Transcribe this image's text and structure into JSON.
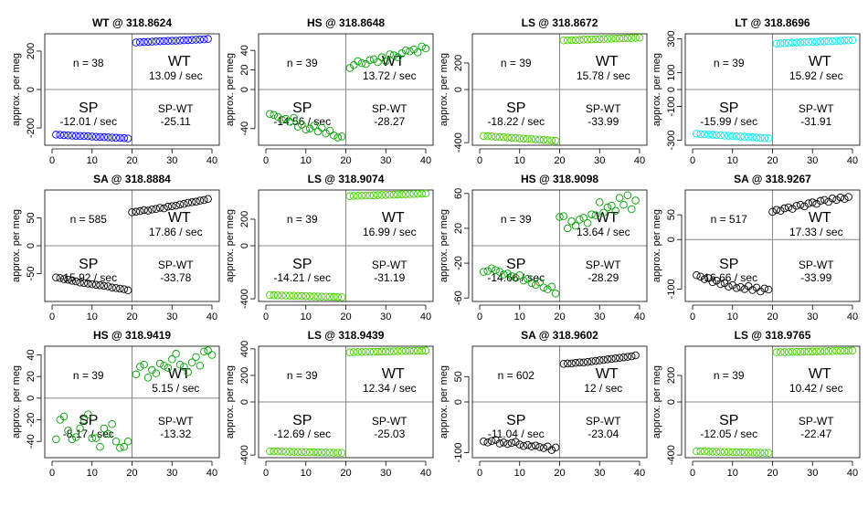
{
  "chart_data": [
    {
      "type": "scatter",
      "title": "WT @ 318.8624",
      "ylabel": "approx. per meg",
      "color": "#0000ff",
      "xlim": [
        0,
        40
      ],
      "ylim": [
        -290,
        290
      ],
      "yticks": [
        -200,
        0,
        200
      ],
      "xticks": [
        0,
        10,
        20,
        30,
        40
      ],
      "n_label": "n = 38",
      "wt_label": "WT",
      "wt_rate": "13.09 / sec",
      "sp_label": "SP",
      "sp_rate": "-12.01 / sec",
      "diff_label": "SP-WT",
      "diff_value": "-25.11",
      "sp_x": [
        1,
        2,
        3,
        4,
        5,
        6,
        7,
        8,
        9,
        10,
        11,
        12,
        13,
        14,
        15,
        16,
        17,
        18,
        19
      ],
      "sp_y": [
        -235,
        -236,
        -238,
        -239,
        -240,
        -241,
        -242,
        -242,
        -243,
        -245,
        -246,
        -247,
        -248,
        -249,
        -250,
        -251,
        -252,
        -253,
        -255
      ],
      "wt_x": [
        21,
        22,
        23,
        24,
        25,
        26,
        27,
        28,
        29,
        30,
        31,
        32,
        33,
        34,
        35,
        36,
        37,
        38,
        39
      ],
      "wt_y": [
        245,
        246,
        247,
        248,
        249,
        250,
        251,
        252,
        253,
        254,
        254,
        255,
        256,
        257,
        258,
        259,
        260,
        261,
        263
      ]
    },
    {
      "type": "scatter",
      "title": "HS @ 318.8648",
      "ylabel": "approx. per meg",
      "color": "#00a000",
      "xlim": [
        0,
        40
      ],
      "ylim": [
        -57,
        57
      ],
      "yticks": [
        -40,
        0,
        20,
        40
      ],
      "xticks": [
        0,
        10,
        20,
        30,
        40
      ],
      "n_label": "n = 39",
      "wt_label": "WT",
      "wt_rate": "13.72 / sec",
      "sp_label": "SP",
      "sp_rate": "-14.56 / sec",
      "diff_label": "SP-WT",
      "diff_value": "-28.27",
      "sp_x": [
        1,
        2,
        3,
        4,
        5,
        6,
        7,
        8,
        9,
        10,
        11,
        12,
        13,
        14,
        15,
        16,
        17,
        18,
        19
      ],
      "sp_y": [
        -25,
        -26,
        -28,
        -31,
        -30,
        -33,
        -29,
        -38,
        -36,
        -41,
        -40,
        -37,
        -43,
        -39,
        -45,
        -42,
        -47,
        -49,
        -48
      ],
      "wt_x": [
        21,
        22,
        23,
        24,
        25,
        26,
        27,
        28,
        29,
        30,
        31,
        32,
        33,
        34,
        35,
        36,
        37,
        38,
        39,
        40
      ],
      "wt_y": [
        22,
        25,
        29,
        27,
        26,
        30,
        31,
        28,
        33,
        29,
        36,
        35,
        33,
        37,
        40,
        39,
        41,
        38,
        44,
        42
      ]
    },
    {
      "type": "scatter",
      "title": "LS @ 318.8672",
      "ylabel": "approx. per meg",
      "color": "#44cc00",
      "xlim": [
        0,
        40
      ],
      "ylim": [
        -420,
        420
      ],
      "yticks": [
        -400,
        0,
        200
      ],
      "xticks": [
        0,
        10,
        20,
        30,
        40
      ],
      "n_label": "n = 39",
      "wt_label": "WT",
      "wt_rate": "15.78 / sec",
      "sp_label": "SP",
      "sp_rate": "-18.22 / sec",
      "diff_label": "SP-WT",
      "diff_value": "-33.99",
      "sp_x": [
        1,
        2,
        3,
        4,
        5,
        6,
        7,
        8,
        9,
        10,
        11,
        12,
        13,
        14,
        15,
        16,
        17,
        18,
        19
      ],
      "sp_y": [
        -350,
        -352,
        -354,
        -356,
        -358,
        -360,
        -362,
        -364,
        -366,
        -368,
        -370,
        -372,
        -374,
        -376,
        -378,
        -380,
        -382,
        -384,
        -386
      ],
      "wt_x": [
        21,
        22,
        23,
        24,
        25,
        26,
        27,
        28,
        29,
        30,
        31,
        32,
        33,
        34,
        35,
        36,
        37,
        38,
        39,
        40
      ],
      "wt_y": [
        370,
        371,
        372,
        373,
        374,
        376,
        377,
        378,
        379,
        380,
        381,
        382,
        383,
        384,
        385,
        386,
        387,
        388,
        389,
        391
      ]
    },
    {
      "type": "scatter",
      "title": "LT @ 318.8696",
      "ylabel": "approx. per meg",
      "color": "#00e5ee",
      "xlim": [
        0,
        40
      ],
      "ylim": [
        -330,
        330
      ],
      "yticks": [
        -300,
        -100,
        0,
        100,
        300
      ],
      "xticks": [
        0,
        10,
        20,
        30,
        40
      ],
      "n_label": "n = 39",
      "wt_label": "WT",
      "wt_rate": "15.92 / sec",
      "sp_label": "SP",
      "sp_rate": "-15.99 / sec",
      "diff_label": "SP-WT",
      "diff_value": "-31.91",
      "sp_x": [
        1,
        2,
        3,
        4,
        5,
        6,
        7,
        8,
        9,
        10,
        11,
        12,
        13,
        14,
        15,
        16,
        17,
        18,
        19
      ],
      "sp_y": [
        -262,
        -264,
        -265,
        -267,
        -268,
        -270,
        -271,
        -273,
        -274,
        -276,
        -277,
        -279,
        -280,
        -282,
        -283,
        -285,
        -286,
        -288,
        -289
      ],
      "wt_x": [
        21,
        22,
        23,
        24,
        25,
        26,
        27,
        28,
        29,
        30,
        31,
        32,
        33,
        34,
        35,
        36,
        37,
        38,
        39,
        40
      ],
      "wt_y": [
        272,
        273,
        274,
        276,
        277,
        278,
        279,
        280,
        281,
        282,
        283,
        284,
        285,
        286,
        287,
        288,
        289,
        290,
        291,
        292
      ]
    },
    {
      "type": "scatter",
      "title": "SA @ 318.8884",
      "ylabel": "approx. per meg",
      "color": "#000000",
      "xlim": [
        0,
        40
      ],
      "ylim": [
        -100,
        100
      ],
      "yticks": [
        -50,
        0,
        50
      ],
      "xticks": [
        0,
        10,
        20,
        30,
        40
      ],
      "n_label": "n = 585",
      "wt_label": "WT",
      "wt_rate": "17.86 / sec",
      "sp_label": "SP",
      "sp_rate": "-15.92 / sec",
      "diff_label": "SP-WT",
      "diff_value": "-33.78",
      "sp_x": [
        1,
        2,
        3,
        4,
        5,
        6,
        7,
        8,
        9,
        10,
        11,
        12,
        13,
        14,
        15,
        16,
        17,
        18,
        19
      ],
      "sp_y": [
        -57,
        -58,
        -60,
        -61,
        -63,
        -64,
        -66,
        -67,
        -68,
        -69,
        -70,
        -71,
        -72,
        -73,
        -75,
        -76,
        -77,
        -78,
        -80
      ],
      "wt_x": [
        20,
        21,
        22,
        23,
        24,
        25,
        26,
        27,
        28,
        29,
        30,
        31,
        32,
        33,
        34,
        35,
        36,
        37,
        38,
        39
      ],
      "wt_y": [
        60,
        61,
        62,
        64,
        63,
        65,
        66,
        68,
        67,
        70,
        71,
        72,
        74,
        75,
        77,
        78,
        79,
        81,
        82,
        84
      ]
    },
    {
      "type": "scatter",
      "title": "LS @ 318.9074",
      "ylabel": "approx. per meg",
      "color": "#44cc00",
      "xlim": [
        0,
        40
      ],
      "ylim": [
        -420,
        420
      ],
      "yticks": [
        -400,
        0,
        200
      ],
      "xticks": [
        0,
        10,
        20,
        30,
        40
      ],
      "n_label": "n = 39",
      "wt_label": "WT",
      "wt_rate": "16.99 / sec",
      "sp_label": "SP",
      "sp_rate": "-14.21 / sec",
      "diff_label": "SP-WT",
      "diff_value": "-31.19",
      "sp_x": [
        1,
        2,
        3,
        4,
        5,
        6,
        7,
        8,
        9,
        10,
        11,
        12,
        13,
        14,
        15,
        16,
        17,
        18,
        19
      ],
      "sp_y": [
        -372,
        -373,
        -374,
        -375,
        -376,
        -377,
        -377,
        -378,
        -379,
        -380,
        -381,
        -382,
        -383,
        -384,
        -384,
        -385,
        -386,
        -387,
        -388
      ],
      "wt_x": [
        21,
        22,
        23,
        24,
        25,
        26,
        27,
        28,
        29,
        30,
        31,
        32,
        33,
        34,
        35,
        36,
        37,
        38,
        39,
        40
      ],
      "wt_y": [
        374,
        375,
        376,
        377,
        378,
        379,
        380,
        381,
        382,
        383,
        384,
        385,
        386,
        387,
        388,
        389,
        390,
        391,
        392,
        393
      ]
    },
    {
      "type": "scatter",
      "title": "HS @ 318.9098",
      "ylabel": "approx. per meg",
      "color": "#00a000",
      "xlim": [
        0,
        40
      ],
      "ylim": [
        -64,
        64
      ],
      "yticks": [
        -60,
        -20,
        20,
        60
      ],
      "xticks": [
        0,
        10,
        20,
        30,
        40
      ],
      "n_label": "n = 39",
      "wt_label": "WT",
      "wt_rate": "13.64 / sec",
      "sp_label": "SP",
      "sp_rate": "-14.66 / sec",
      "diff_label": "SP-WT",
      "diff_value": "-28.29",
      "sp_x": [
        1,
        2,
        3,
        4,
        5,
        6,
        7,
        8,
        9,
        10,
        11,
        12,
        13,
        14,
        15,
        16,
        17,
        18,
        19
      ],
      "sp_y": [
        -30,
        -29,
        -26,
        -28,
        -30,
        -33,
        -32,
        -35,
        -37,
        -34,
        -40,
        -38,
        -43,
        -45,
        -42,
        -48,
        -50,
        -47,
        -55
      ],
      "wt_x": [
        20,
        21,
        22,
        23,
        24,
        25,
        26,
        27,
        28,
        29,
        30,
        31,
        32,
        33,
        34,
        35,
        36,
        37,
        38,
        39
      ],
      "wt_y": [
        33,
        34,
        20,
        28,
        23,
        30,
        32,
        26,
        36,
        35,
        50,
        38,
        44,
        46,
        40,
        55,
        47,
        58,
        42,
        52
      ]
    },
    {
      "type": "scatter",
      "title": "SA @ 318.9267",
      "ylabel": "approx. per meg",
      "color": "#000000",
      "xlim": [
        0,
        40
      ],
      "ylim": [
        -125,
        100
      ],
      "yticks": [
        -100,
        0,
        50
      ],
      "xticks": [
        0,
        10,
        20,
        30,
        40
      ],
      "n_label": "n = 517",
      "wt_label": "WT",
      "wt_rate": "17.33 / sec",
      "sp_label": "SP",
      "sp_rate": "-16.66 / sec",
      "diff_label": "SP-WT",
      "diff_value": "-33.99",
      "sp_x": [
        1,
        2,
        3,
        4,
        5,
        6,
        7,
        8,
        9,
        10,
        11,
        12,
        13,
        14,
        15,
        16,
        17,
        18,
        19
      ],
      "sp_y": [
        -72,
        -75,
        -80,
        -78,
        -86,
        -83,
        -90,
        -88,
        -95,
        -92,
        -98,
        -96,
        -100,
        -94,
        -102,
        -97,
        -105,
        -99,
        -101
      ],
      "wt_x": [
        20,
        21,
        22,
        23,
        24,
        25,
        26,
        27,
        28,
        29,
        30,
        31,
        32,
        33,
        34,
        35,
        36,
        37,
        38,
        39
      ],
      "wt_y": [
        56,
        60,
        58,
        63,
        65,
        62,
        68,
        70,
        67,
        73,
        75,
        72,
        78,
        80,
        76,
        83,
        80,
        85,
        82,
        86
      ]
    },
    {
      "type": "scatter",
      "title": "HS @ 318.9419",
      "ylabel": "approx. per meg",
      "color": "#00a000",
      "xlim": [
        0,
        40
      ],
      "ylim": [
        -55,
        48
      ],
      "yticks": [
        -40,
        -20,
        0,
        20,
        40
      ],
      "xticks": [
        0,
        10,
        20,
        30,
        40
      ],
      "n_label": "n = 39",
      "wt_label": "WT",
      "wt_rate": "5.15 / sec",
      "sp_label": "SP",
      "sp_rate": "-8.17 / sec",
      "diff_label": "SP-WT",
      "diff_value": "-13.32",
      "sp_x": [
        1,
        2,
        3,
        4,
        5,
        6,
        7,
        8,
        9,
        10,
        11,
        12,
        13,
        14,
        15,
        16,
        17,
        18,
        19
      ],
      "sp_y": [
        -38,
        -20,
        -17,
        -30,
        -38,
        -36,
        -28,
        -20,
        -15,
        -37,
        -37,
        -45,
        -28,
        -33,
        -24,
        -40,
        -46,
        -45,
        -40
      ],
      "wt_x": [
        21,
        22,
        23,
        24,
        25,
        26,
        27,
        28,
        29,
        30,
        31,
        32,
        33,
        34,
        35,
        36,
        37,
        38,
        39,
        40
      ],
      "wt_y": [
        22,
        29,
        31,
        19,
        26,
        23,
        32,
        30,
        28,
        36,
        41,
        31,
        29,
        24,
        33,
        38,
        30,
        43,
        44,
        40
      ]
    },
    {
      "type": "scatter",
      "title": "LS @ 318.9439",
      "ylabel": "approx. per meg",
      "color": "#44cc00",
      "xlim": [
        0,
        40
      ],
      "ylim": [
        -420,
        420
      ],
      "yticks": [
        -400,
        0,
        200,
        400
      ],
      "xticks": [
        0,
        10,
        20,
        30,
        40
      ],
      "n_label": "n = 39",
      "wt_label": "WT",
      "wt_rate": "12.34 / sec",
      "sp_label": "SP",
      "sp_rate": "-12.69 / sec",
      "diff_label": "SP-WT",
      "diff_value": "-25.03",
      "sp_x": [
        1,
        2,
        3,
        4,
        5,
        6,
        7,
        8,
        9,
        10,
        11,
        12,
        13,
        14,
        15,
        16,
        17,
        18,
        19
      ],
      "sp_y": [
        -372,
        -373,
        -373,
        -374,
        -375,
        -375,
        -376,
        -377,
        -377,
        -378,
        -379,
        -379,
        -380,
        -381,
        -381,
        -382,
        -383,
        -383,
        -384
      ],
      "wt_x": [
        21,
        22,
        23,
        24,
        25,
        26,
        27,
        28,
        29,
        30,
        31,
        32,
        33,
        34,
        35,
        36,
        37,
        38,
        39,
        40
      ],
      "wt_y": [
        374,
        375,
        376,
        376,
        377,
        378,
        378,
        379,
        380,
        380,
        381,
        382,
        382,
        383,
        384,
        384,
        385,
        386,
        386,
        387
      ]
    },
    {
      "type": "scatter",
      "title": "SA @ 318.9602",
      "ylabel": "approx. per meg",
      "color": "#000000",
      "xlim": [
        0,
        40
      ],
      "ylim": [
        -110,
        110
      ],
      "yticks": [
        -100,
        0,
        50
      ],
      "xticks": [
        0,
        10,
        20,
        30,
        40
      ],
      "n_label": "n = 602",
      "wt_label": "WT",
      "wt_rate": "12 / sec",
      "sp_label": "SP",
      "sp_rate": "-11.04 / sec",
      "diff_label": "SP-WT",
      "diff_value": "-23.04",
      "sp_x": [
        1,
        2,
        3,
        4,
        5,
        6,
        7,
        8,
        9,
        10,
        11,
        12,
        13,
        14,
        15,
        16,
        17,
        18,
        19
      ],
      "sp_y": [
        -78,
        -80,
        -77,
        -75,
        -82,
        -80,
        -83,
        -81,
        -79,
        -84,
        -87,
        -85,
        -88,
        -86,
        -89,
        -91,
        -88,
        -95,
        -90
      ],
      "wt_x": [
        21,
        22,
        23,
        24,
        25,
        26,
        27,
        28,
        29,
        30,
        31,
        32,
        33,
        34,
        35,
        36,
        37,
        38,
        39
      ],
      "wt_y": [
        75,
        76,
        76,
        77,
        78,
        78,
        79,
        80,
        81,
        82,
        83,
        84,
        85,
        86,
        87,
        88,
        89,
        90,
        92
      ]
    },
    {
      "type": "scatter",
      "title": "LS @ 318.9765",
      "ylabel": "approx. per meg",
      "color": "#44cc00",
      "xlim": [
        0,
        40
      ],
      "ylim": [
        -420,
        420
      ],
      "yticks": [
        -400,
        0,
        200
      ],
      "xticks": [
        0,
        10,
        20,
        30,
        40
      ],
      "n_label": "n = 39",
      "wt_label": "WT",
      "wt_rate": "10.42 / sec",
      "sp_label": "SP",
      "sp_rate": "-12.05 / sec",
      "diff_label": "SP-WT",
      "diff_value": "-22.47",
      "sp_x": [
        1,
        2,
        3,
        4,
        5,
        6,
        7,
        8,
        9,
        10,
        11,
        12,
        13,
        14,
        15,
        16,
        17,
        18,
        19
      ],
      "sp_y": [
        -372,
        -373,
        -373,
        -374,
        -375,
        -375,
        -376,
        -377,
        -377,
        -378,
        -379,
        -379,
        -380,
        -381,
        -381,
        -382,
        -383,
        -383,
        -384
      ],
      "wt_x": [
        21,
        22,
        23,
        24,
        25,
        26,
        27,
        28,
        29,
        30,
        31,
        32,
        33,
        34,
        35,
        36,
        37,
        38,
        39,
        40
      ],
      "wt_y": [
        374,
        375,
        375,
        376,
        377,
        377,
        378,
        379,
        379,
        380,
        381,
        381,
        382,
        383,
        383,
        384,
        385,
        385,
        386,
        387
      ]
    }
  ]
}
